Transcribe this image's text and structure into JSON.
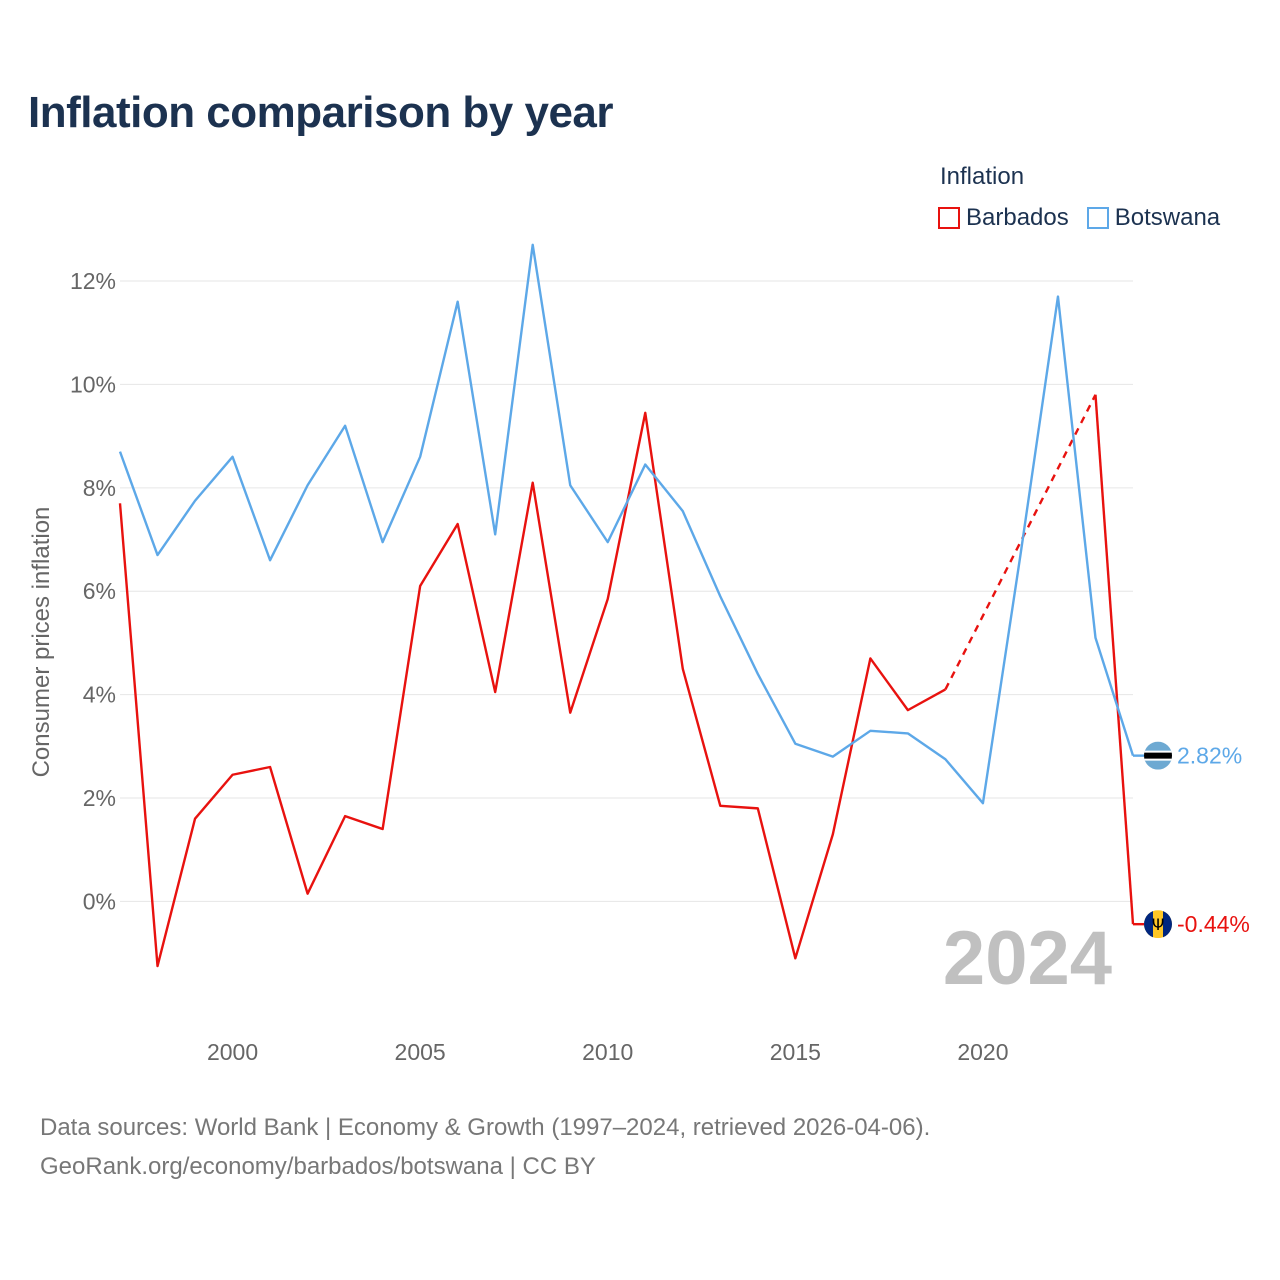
{
  "title": "Inflation comparison by year",
  "legend": {
    "title": "Inflation",
    "items": [
      {
        "name": "Barbados",
        "color": "#e8120f"
      },
      {
        "name": "Botswana",
        "color": "#5da8e8"
      }
    ]
  },
  "footer": {
    "line1": "Data sources: World Bank | Economy & Growth (1997–2024, retrieved 2026-04-06).",
    "line2": "GeoRank.org/economy/barbados/botswana | CC BY"
  },
  "chart_data": {
    "type": "line",
    "title": "Inflation comparison by year",
    "ylabel": "Consumer prices inflation",
    "xlabel": "",
    "xlim": [
      1997,
      2024
    ],
    "ylim": [
      -2.1,
      12.6
    ],
    "yticks": [
      0,
      2,
      4,
      6,
      8,
      10,
      12
    ],
    "ytick_labels": [
      "0%",
      "2%",
      "4%",
      "6%",
      "8%",
      "10%",
      "12%"
    ],
    "xticks": [
      2000,
      2005,
      2010,
      2015,
      2020
    ],
    "xtick_labels": [
      "2000",
      "2005",
      "2010",
      "2015",
      "2020"
    ],
    "year_watermark": "2024",
    "x": [
      1997,
      1998,
      1999,
      2000,
      2001,
      2002,
      2003,
      2004,
      2005,
      2006,
      2007,
      2008,
      2009,
      2010,
      2011,
      2012,
      2013,
      2014,
      2015,
      2016,
      2017,
      2018,
      2019,
      2020,
      2021,
      2022,
      2023,
      2024
    ],
    "series": [
      {
        "name": "Barbados",
        "color": "#e8120f",
        "values": [
          7.7,
          -1.25,
          1.6,
          2.45,
          2.6,
          0.15,
          1.65,
          1.4,
          6.1,
          7.3,
          4.05,
          8.1,
          3.65,
          5.85,
          9.45,
          4.5,
          1.85,
          1.8,
          -1.1,
          1.3,
          4.7,
          3.7,
          4.1,
          null,
          null,
          null,
          9.8,
          -0.44
        ],
        "dashed_segment": {
          "from": 2019,
          "to": 2023
        },
        "end_label": "-0.44%"
      },
      {
        "name": "Botswana",
        "color": "#5da8e8",
        "values": [
          8.7,
          6.7,
          7.75,
          8.6,
          6.6,
          8.05,
          9.2,
          6.95,
          8.6,
          11.6,
          7.1,
          12.7,
          8.05,
          6.95,
          8.45,
          7.55,
          5.9,
          4.4,
          3.05,
          2.8,
          3.3,
          3.25,
          2.75,
          1.9,
          6.7,
          11.7,
          5.1,
          2.82
        ],
        "end_label": "2.82%"
      }
    ]
  }
}
